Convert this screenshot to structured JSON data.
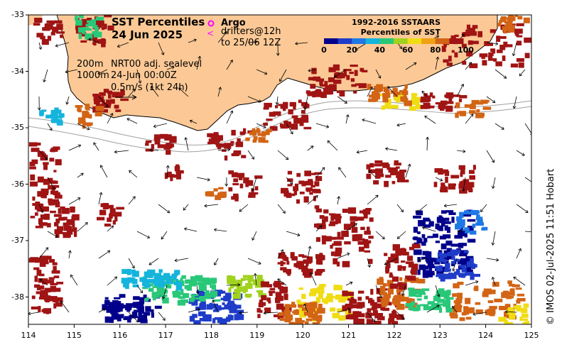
{
  "title": {
    "line1": "SST Percentiles",
    "line2": "24 Jun 2025"
  },
  "legend": {
    "argo": "Argo",
    "drifters": "drifters@12h",
    "drifters_to": "to 25/06 12Z",
    "argo_symbol": "o",
    "drifter_symbol": "<"
  },
  "info": {
    "contour_200": "200m",
    "contour_1000": "1000m",
    "product": "NRT00 adj. sealevel",
    "time": "24-Jun 00:00Z",
    "vector_scale": "0.5m/s (1kt 24h)"
  },
  "colorbar": {
    "title1": "1992-2016 SSTAARS",
    "title2": "Percentiles of SST",
    "ticks": [
      "0",
      "20",
      "40",
      "60",
      "80",
      "100"
    ],
    "colors": [
      "#00008b",
      "#1e3cc8",
      "#1e78e6",
      "#14b4dc",
      "#28c878",
      "#a0d21e",
      "#f0dc14",
      "#f0a014",
      "#d26414",
      "#a01414"
    ]
  },
  "axes": {
    "x_ticks": [
      "114",
      "115",
      "116",
      "117",
      "118",
      "119",
      "120",
      "121",
      "122",
      "123",
      "124",
      "125"
    ],
    "y_ticks": [
      "-33",
      "-34",
      "-35",
      "-36",
      "-37",
      "-38"
    ]
  },
  "credit": "© IMOS 02-Jul-2025 11:51 Hobart",
  "colors": {
    "land": "#fcc996",
    "frame": "#000000"
  }
}
